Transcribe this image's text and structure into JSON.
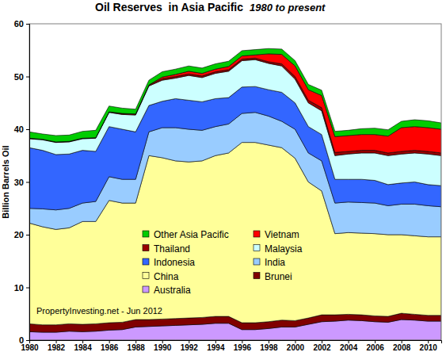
{
  "chart_data": {
    "type": "stacked_area",
    "title": "Oil Reserves  in Asia Pacific",
    "subtitle": "1980 to present",
    "y_label": "Billion Barrels Oil",
    "annotation": "PropertyInvesting.net - Jun 2012",
    "stacked": true,
    "grid": false,
    "legend": "bottom",
    "xlim": [
      1980,
      2011
    ],
    "xticks": [
      1980,
      1982,
      1984,
      1986,
      1988,
      1990,
      1992,
      1994,
      1996,
      1998,
      2000,
      2002,
      2004,
      2006,
      2008,
      2010
    ],
    "ylim": [
      0,
      60
    ],
    "yticks": [
      0,
      10,
      20,
      30,
      40,
      50,
      60
    ],
    "x": [
      1980,
      1981,
      1982,
      1983,
      1984,
      1985,
      1986,
      1987,
      1988,
      1989,
      1990,
      1991,
      1992,
      1993,
      1994,
      1995,
      1996,
      1997,
      1998,
      1999,
      2000,
      2001,
      2002,
      2003,
      2004,
      2005,
      2006,
      2007,
      2008,
      2009,
      2010,
      2011
    ],
    "series": [
      {
        "name": "Australia",
        "color": "#cc99ff",
        "values": [
          1.6,
          1.5,
          1.5,
          1.7,
          1.6,
          1.7,
          1.9,
          2.0,
          2.5,
          2.6,
          2.7,
          2.8,
          2.9,
          3.0,
          3.2,
          3.2,
          2.0,
          2.0,
          2.2,
          2.5,
          2.5,
          3.0,
          3.5,
          3.6,
          3.8,
          3.7,
          3.5,
          3.4,
          3.9,
          3.8,
          3.6,
          3.6
        ]
      },
      {
        "name": "Brunei",
        "color": "#800000",
        "values": [
          1.5,
          1.4,
          1.4,
          1.4,
          1.4,
          1.4,
          1.4,
          1.4,
          1.4,
          1.3,
          1.3,
          1.3,
          1.3,
          1.3,
          1.3,
          1.3,
          1.3,
          1.3,
          1.3,
          1.3,
          1.2,
          1.2,
          1.3,
          1.2,
          1.1,
          1.1,
          1.1,
          1.1,
          1.2,
          1.1,
          1.1,
          1.1
        ]
      },
      {
        "name": "China",
        "color": "#ffff99",
        "values": [
          19.1,
          18.6,
          18.1,
          18.2,
          19.5,
          19.4,
          23.2,
          22.6,
          22.1,
          31.1,
          30.6,
          29.9,
          29.6,
          29.7,
          30.5,
          31.0,
          34.2,
          34.2,
          33.5,
          32.7,
          30.8,
          25.8,
          23.5,
          15.4,
          15.5,
          15.5,
          15.6,
          15.5,
          14.9,
          14.9,
          14.9,
          14.9
        ]
      },
      {
        "name": "India",
        "color": "#99ccff",
        "values": [
          2.8,
          3.4,
          3.7,
          3.7,
          3.5,
          3.8,
          4.5,
          4.5,
          4.5,
          4.5,
          5.7,
          6.3,
          6.2,
          5.8,
          5.5,
          5.5,
          5.5,
          5.7,
          5.5,
          5.0,
          5.5,
          5.5,
          5.7,
          5.8,
          5.8,
          5.8,
          5.8,
          5.5,
          5.8,
          6.0,
          5.9,
          5.7
        ]
      },
      {
        "name": "Indonesia",
        "color": "#3366ff",
        "values": [
          11.5,
          11.1,
          10.5,
          10.3,
          10.0,
          9.5,
          9.5,
          9.5,
          9.0,
          5.0,
          5.0,
          5.5,
          5.5,
          5.4,
          5.3,
          5.0,
          5.0,
          4.9,
          5.0,
          5.5,
          5.0,
          5.0,
          5.0,
          4.5,
          4.3,
          4.4,
          4.3,
          4.0,
          4.0,
          4.2,
          4.0,
          4.0
        ]
      },
      {
        "name": "Malaysia",
        "color": "#ccffff",
        "values": [
          1.7,
          2.0,
          2.3,
          2.3,
          2.2,
          2.5,
          2.7,
          2.8,
          3.2,
          3.7,
          4.0,
          3.9,
          4.7,
          4.6,
          4.8,
          5.0,
          5.0,
          5.1,
          5.0,
          5.0,
          4.5,
          4.5,
          4.5,
          4.5,
          4.8,
          5.0,
          5.2,
          5.5,
          5.5,
          5.5,
          5.8,
          5.7
        ]
      },
      {
        "name": "Thailand",
        "color": "#990000",
        "values": [
          0.1,
          0.1,
          0.1,
          0.1,
          0.1,
          0.1,
          0.1,
          0.2,
          0.2,
          0.2,
          0.3,
          0.3,
          0.3,
          0.3,
          0.3,
          0.3,
          0.3,
          0.3,
          0.3,
          0.4,
          0.5,
          0.5,
          0.6,
          0.6,
          0.5,
          0.5,
          0.5,
          0.5,
          0.5,
          0.5,
          0.5,
          0.5
        ]
      },
      {
        "name": "Vietnam",
        "color": "#ff0000",
        "values": [
          0,
          0,
          0,
          0,
          0,
          0,
          0,
          0,
          0,
          0,
          0.3,
          0.4,
          0.5,
          0.5,
          0.5,
          0.6,
          0.6,
          0.6,
          1.5,
          1.8,
          2.0,
          2.0,
          2.3,
          3.0,
          3.0,
          3.0,
          3.0,
          3.2,
          4.5,
          4.5,
          4.5,
          4.5
        ]
      },
      {
        "name": "Other Asia Pacific",
        "color": "#00cc00",
        "values": [
          1.2,
          1.0,
          1.2,
          1.2,
          1.3,
          1.4,
          1.1,
          1.0,
          0.9,
          0.9,
          1.0,
          1.0,
          1.0,
          1.0,
          1.0,
          1.0,
          1.0,
          1.0,
          1.0,
          1.0,
          1.0,
          1.0,
          1.0,
          1.0,
          1.0,
          1.1,
          1.2,
          1.2,
          1.2,
          1.3,
          1.3,
          1.2
        ]
      }
    ]
  }
}
